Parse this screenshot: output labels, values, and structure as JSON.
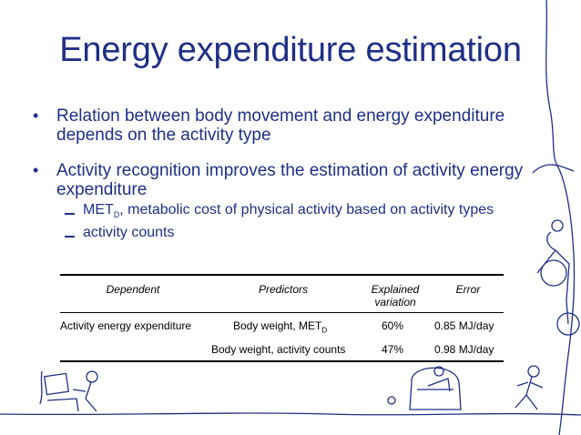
{
  "slide": {
    "title": "Energy expenditure estimation",
    "bullets": [
      "Relation between body movement and energy expenditure depends on the activity type",
      "Activity recognition improves the estimation of activity energy expenditure"
    ],
    "subbullets": [
      {
        "main": "MET",
        "sub": "D",
        "rest": ", metabolic cost of physical activity based on activity types"
      },
      {
        "main": "activity counts"
      }
    ]
  },
  "table": {
    "headers": {
      "dependent": "Dependent",
      "predictors": "Predictors",
      "explained_line1": "Explained",
      "explained_line2": "variation",
      "error": "Error"
    },
    "rows": [
      {
        "dependent": "Activity energy expenditure",
        "predictors_main": "Body weight, MET",
        "predictors_sub": "D",
        "explained": "60%",
        "error": "0.85 MJ/day"
      },
      {
        "dependent": "",
        "predictors_main": "Body weight, activity counts",
        "predictors_sub": "",
        "explained": "47%",
        "error": "0.98 MJ/day"
      }
    ]
  },
  "decorations": {
    "line_color": "#1f2f86",
    "icons": [
      "computer-user-icon",
      "sofa-reader-icon",
      "runner-icon",
      "cyclist-icon"
    ]
  }
}
